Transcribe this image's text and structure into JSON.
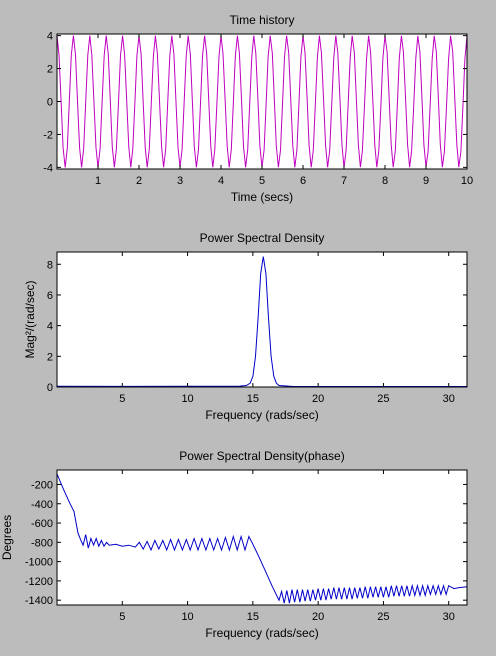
{
  "chart_data": [
    {
      "type": "line",
      "title": "Time history",
      "xlabel": "Time (secs)",
      "ylabel": "",
      "xlim": [
        0,
        10
      ],
      "ylim": [
        -4.1,
        4.1
      ],
      "xticks": [
        1,
        2,
        3,
        4,
        5,
        6,
        7,
        8,
        9,
        10
      ],
      "yticks": [
        -4,
        -2,
        0,
        2,
        4
      ],
      "series": [
        {
          "color": "#c000c0",
          "signal": {
            "amplitude": 4,
            "angular_frequency_rad_per_sec": 15.7,
            "t_start": 0,
            "t_end": 10,
            "samples": 200
          }
        }
      ]
    },
    {
      "type": "line",
      "title": "Power Spectral Density",
      "xlabel": "Frequency (rads/sec)",
      "ylabel": "Mag²/(rad/sec)",
      "xlim": [
        0,
        31.4
      ],
      "ylim": [
        0,
        8.8
      ],
      "xticks": [
        5,
        10,
        15,
        20,
        25,
        30
      ],
      "yticks": [
        0,
        2,
        4,
        6,
        8
      ],
      "series": [
        {
          "color": "#0000c8",
          "x": [
            0,
            5,
            10,
            14,
            14.5,
            14.8,
            15.0,
            15.2,
            15.4,
            15.6,
            15.8,
            16.0,
            16.2,
            16.4,
            16.6,
            16.8,
            17.0,
            18,
            20,
            25,
            31.4
          ],
          "y": [
            0.05,
            0.04,
            0.05,
            0.06,
            0.1,
            0.25,
            0.7,
            2.0,
            4.5,
            7.4,
            8.5,
            7.4,
            4.5,
            2.0,
            0.7,
            0.25,
            0.1,
            0.04,
            0.03,
            0.03,
            0.03
          ]
        }
      ]
    },
    {
      "type": "line",
      "title": "Power Spectral Density(phase)",
      "xlabel": "Frequency (rads/sec)",
      "ylabel": "Degrees",
      "xlim": [
        0,
        31.4
      ],
      "ylim": [
        -1450,
        -50
      ],
      "xticks": [
        5,
        10,
        15,
        20,
        25,
        30
      ],
      "yticks": [
        -1400,
        -1200,
        -1000,
        -800,
        -600,
        -400,
        -200
      ],
      "series": [
        {
          "color": "#0000c8",
          "x": [
            0,
            0.5,
            1.0,
            1.3,
            1.6,
            1.8,
            2.0,
            2.2,
            2.4,
            2.6,
            2.8,
            3.0,
            3.2,
            3.4,
            3.6,
            3.8,
            4.0,
            4.5,
            5.0,
            5.5,
            6.0,
            6.3,
            6.6,
            6.9,
            7.2,
            7.5,
            7.8,
            8.1,
            8.4,
            8.7,
            9.0,
            9.3,
            9.6,
            9.9,
            10.2,
            10.5,
            10.8,
            11.1,
            11.4,
            11.7,
            12.0,
            12.3,
            12.6,
            12.9,
            13.2,
            13.5,
            13.8,
            14.1,
            14.4,
            14.7,
            15.0,
            15.5,
            16.0,
            16.5,
            17.0,
            17.2,
            17.4,
            17.6,
            17.8,
            18.0,
            18.2,
            18.4,
            18.6,
            18.8,
            19.0,
            19.2,
            19.4,
            19.6,
            19.8,
            20.0,
            20.2,
            20.4,
            20.6,
            20.8,
            21.0,
            21.2,
            21.4,
            21.6,
            21.8,
            22.0,
            22.2,
            22.4,
            22.6,
            22.8,
            23.0,
            23.2,
            23.4,
            23.6,
            23.8,
            24.0,
            24.2,
            24.4,
            24.6,
            24.8,
            25.0,
            25.2,
            25.4,
            25.6,
            25.8,
            26.0,
            26.2,
            26.4,
            26.6,
            26.8,
            27.0,
            27.2,
            27.4,
            27.6,
            27.8,
            28.0,
            28.2,
            28.4,
            28.6,
            28.8,
            29.0,
            29.2,
            29.4,
            29.6,
            29.8,
            30.0,
            30.4,
            30.8,
            31.4
          ],
          "y": [
            -90,
            -250,
            -400,
            -480,
            -700,
            -770,
            -830,
            -720,
            -860,
            -760,
            -830,
            -760,
            -840,
            -780,
            -840,
            -800,
            -830,
            -820,
            -840,
            -830,
            -850,
            -800,
            -870,
            -790,
            -880,
            -780,
            -870,
            -780,
            -880,
            -770,
            -880,
            -770,
            -880,
            -770,
            -880,
            -760,
            -880,
            -760,
            -880,
            -760,
            -880,
            -760,
            -880,
            -750,
            -880,
            -740,
            -880,
            -740,
            -880,
            -740,
            -820,
            -960,
            -1110,
            -1260,
            -1400,
            -1310,
            -1430,
            -1300,
            -1430,
            -1290,
            -1420,
            -1290,
            -1420,
            -1290,
            -1410,
            -1290,
            -1410,
            -1290,
            -1400,
            -1280,
            -1400,
            -1280,
            -1400,
            -1280,
            -1390,
            -1270,
            -1390,
            -1270,
            -1390,
            -1270,
            -1390,
            -1270,
            -1390,
            -1270,
            -1380,
            -1270,
            -1380,
            -1260,
            -1380,
            -1260,
            -1370,
            -1260,
            -1370,
            -1260,
            -1370,
            -1260,
            -1370,
            -1250,
            -1360,
            -1250,
            -1360,
            -1250,
            -1360,
            -1250,
            -1360,
            -1250,
            -1350,
            -1250,
            -1350,
            -1250,
            -1350,
            -1250,
            -1340,
            -1250,
            -1340,
            -1250,
            -1340,
            -1250,
            -1340,
            -1250,
            -1280,
            -1270,
            -1260
          ]
        }
      ]
    }
  ],
  "colors": {
    "figure_background": "#bcbcbc",
    "axes_background": "#ffffff"
  }
}
